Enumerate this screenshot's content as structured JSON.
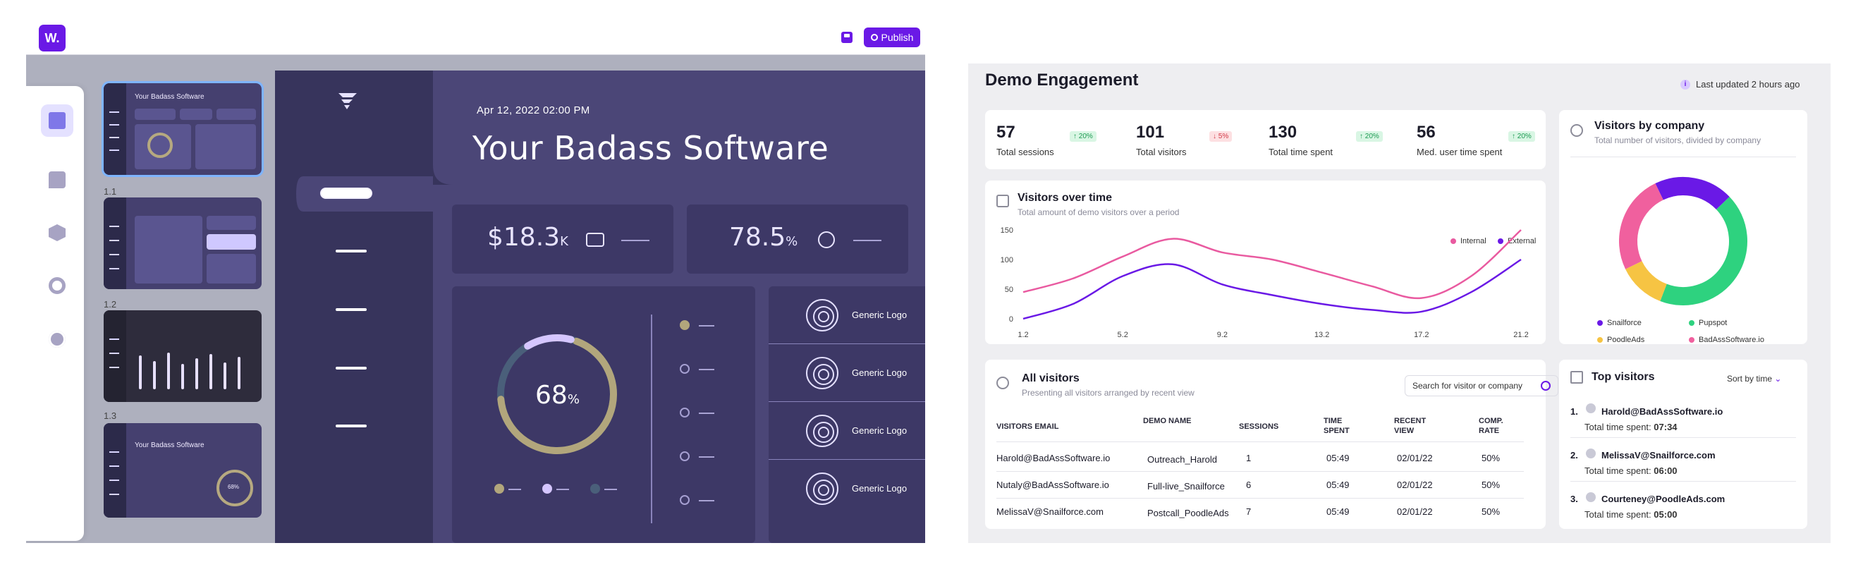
{
  "editor": {
    "logo_text": "W.",
    "publish_label": "Publish",
    "slides": [
      {
        "label": "",
        "title": "Your Badass Software"
      },
      {
        "label": "1.1"
      },
      {
        "label": "1.2"
      },
      {
        "label": "1.3",
        "title": "Your Badass Software",
        "donut": "68%"
      }
    ],
    "canvas": {
      "date": "Apr 12, 2022 02:00 PM",
      "title": "Your Badass Software",
      "stat1_value": "$18.3",
      "stat1_unit": "K",
      "stat2_value": "78.5",
      "stat2_unit": "%",
      "donut_value": "68",
      "donut_unit": "%",
      "donut_fraction": 0.68,
      "logos": [
        "Generic Logo",
        "Generic Logo",
        "Generic Logo",
        "Generic Logo"
      ]
    }
  },
  "dashboard": {
    "title": "Demo Engagement",
    "last_updated": "Last updated 2 hours ago",
    "kpis": [
      {
        "value": "57",
        "label": "Total sessions",
        "delta": "20%",
        "trend": "up"
      },
      {
        "value": "101",
        "label": "Total visitors",
        "delta": "5%",
        "trend": "down"
      },
      {
        "value": "130",
        "label": "Total time spent",
        "delta": "20%",
        "trend": "up"
      },
      {
        "value": "56",
        "label": "Med. user time spent",
        "delta": "20%",
        "trend": "up"
      }
    ],
    "visitors_over_time": {
      "title": "Visitors over time",
      "subtitle": "Total amount of demo visitors over a period"
    },
    "visitors_by_company": {
      "title": "Visitors by company",
      "subtitle": "Total number of visitors, divided by company"
    },
    "all_visitors": {
      "title": "All visitors",
      "subtitle": "Presenting all visitors arranged by recent view",
      "search_placeholder": "Search for visitor or company",
      "columns": [
        "VISITORS EMAIL",
        "DEMO NAME",
        "SESSIONS",
        "TIME SPENT",
        "RECENT VIEW",
        "COMP. RATE"
      ],
      "rows": [
        [
          "Harold@BadAssSoftware.io",
          "Outreach_Harold",
          "1",
          "05:49",
          "02/01/22",
          "50%"
        ],
        [
          "Nutaly@BadAssSoftware.io",
          "Full-live_Snailforce",
          "6",
          "05:49",
          "02/01/22",
          "50%"
        ],
        [
          "MelissaV@Snailforce.com",
          "Postcall_PoodleAds",
          "7",
          "05:49",
          "02/01/22",
          "50%"
        ]
      ]
    },
    "top_visitors": {
      "title": "Top visitors",
      "sort_label": "Sort by time",
      "items": [
        {
          "rank": "1.",
          "name": "Harold@BadAssSoftware.io",
          "time_label": "Total time spent:",
          "time": "07:34"
        },
        {
          "rank": "2.",
          "name": "MelissaV@Snailforce.com",
          "time_label": "Total time spent:",
          "time": "06:00"
        },
        {
          "rank": "3.",
          "name": "Courteney@PoodleAds.com",
          "time_label": "Total time spent:",
          "time": "05:00"
        }
      ]
    },
    "colors": {
      "accent": "#6a19e6",
      "internal": "#e95aa0",
      "external": "#6a19e6"
    }
  },
  "chart_data": [
    {
      "type": "line",
      "title": "Visitors over time",
      "x": [
        1.2,
        3.2,
        5.2,
        7.2,
        9.2,
        11.2,
        13.2,
        15.2,
        17.2,
        19.2,
        21.2
      ],
      "x_ticks": [
        "1.2",
        "5.2",
        "9.2",
        "13.2",
        "17.2",
        "21.2"
      ],
      "y_ticks": [
        "150",
        "100",
        "50",
        "0"
      ],
      "ylim": [
        0,
        150
      ],
      "legend_position": "top-right",
      "series": [
        {
          "name": "Internal",
          "color": "#e95aa0",
          "values": [
            45,
            68,
            105,
            135,
            112,
            100,
            78,
            55,
            35,
            72,
            150
          ]
        },
        {
          "name": "External",
          "color": "#6a19e6",
          "values": [
            0,
            25,
            72,
            92,
            58,
            40,
            25,
            15,
            12,
            45,
            100
          ]
        }
      ]
    },
    {
      "type": "pie",
      "title": "Visitors by company",
      "legend_position": "bottom",
      "series": [
        {
          "name": "Snailforce",
          "value": 20,
          "color": "#6a19e6"
        },
        {
          "name": "Pupspot",
          "value": 43,
          "color": "#2ed27f"
        },
        {
          "name": "PoodleAds",
          "value": 12,
          "color": "#f6c443"
        },
        {
          "name": "BadAssSoftware.io",
          "value": 25,
          "color": "#f0609e"
        }
      ]
    }
  ]
}
